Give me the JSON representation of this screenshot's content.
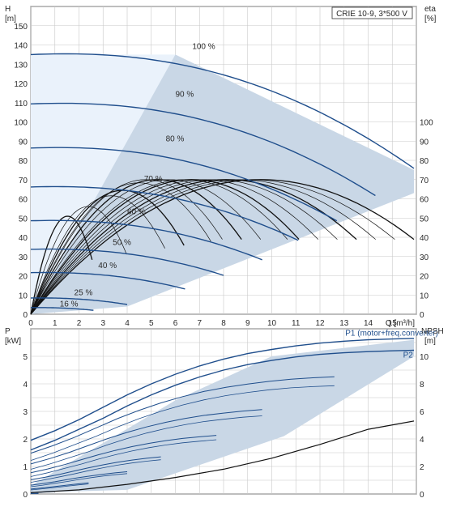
{
  "page": {
    "title": "CRIE 10-9, 3*500 V"
  },
  "colors": {
    "background": "#ffffff",
    "grid": "#c8c8c8",
    "axis": "#333333",
    "curve_blue": "#1f4e8c",
    "curve_black": "#111111",
    "envelope_fill": "#c9d7e6",
    "envelope_light": "#eaf2fb",
    "text": "#2a2a2a",
    "text_blue": "#1f4e8c"
  },
  "chart_data": [
    {
      "id": "qh",
      "type": "line",
      "title": "CRIE 10-9, 3*500 V",
      "xlabel": "Q [m³/h]",
      "ylabel_left": [
        "H",
        "[m]"
      ],
      "ylabel_right": [
        "eta",
        "[%]"
      ],
      "xlim": [
        0,
        16
      ],
      "ylim": [
        0,
        160
      ],
      "y2lim": [
        0,
        160
      ],
      "x_ticks": [
        "0",
        "1",
        "2",
        "3",
        "4",
        "5",
        "6",
        "7",
        "8",
        "9",
        "10",
        "11",
        "12",
        "13",
        "14",
        "15"
      ],
      "y_ticks": [
        "0",
        "10",
        "20",
        "30",
        "40",
        "50",
        "60",
        "70",
        "80",
        "90",
        "100",
        "110",
        "120",
        "130",
        "140",
        "150"
      ],
      "y2_ticks": [
        "0",
        "10",
        "20",
        "30",
        "40",
        "50",
        "60",
        "70",
        "80",
        "90",
        "100"
      ],
      "grid": true,
      "envelope_light": [
        [
          0,
          135
        ],
        [
          6,
          135
        ],
        [
          2,
          4
        ],
        [
          0,
          0
        ]
      ],
      "envelope_main": [
        [
          0,
          0
        ],
        [
          6,
          135
        ],
        [
          15.9,
          75
        ],
        [
          15.9,
          63
        ],
        [
          4,
          4
        ],
        [
          0,
          0
        ]
      ],
      "series": [
        {
          "name": "100 %",
          "speed": 1.0,
          "label_x": 6.7,
          "label_y": 138,
          "end_x": 15.9,
          "end_y": 75
        },
        {
          "name": "90 %",
          "speed": 0.9,
          "label_x": 6.0,
          "label_y": 113,
          "end_x": 14.3,
          "end_y": 61
        },
        {
          "name": "80 %",
          "speed": 0.8,
          "label_x": 5.6,
          "label_y": 90,
          "end_x": 12.7,
          "end_y": 48
        },
        {
          "name": "70 %",
          "speed": 0.7,
          "label_x": 4.7,
          "label_y": 69,
          "end_x": 11.1,
          "end_y": 38
        },
        {
          "name": "60 %",
          "speed": 0.6,
          "label_x": 4.0,
          "label_y": 52,
          "end_x": 9.6,
          "end_y": 28
        },
        {
          "name": "50 %",
          "speed": 0.5,
          "label_x": 3.4,
          "label_y": 36,
          "end_x": 8.0,
          "end_y": 20
        },
        {
          "name": "40 %",
          "speed": 0.4,
          "label_x": 2.8,
          "label_y": 24,
          "end_x": 6.4,
          "end_y": 13
        },
        {
          "name": "25 %",
          "speed": 0.25,
          "label_x": 1.8,
          "label_y": 10,
          "end_x": 4.0,
          "end_y": 5
        },
        {
          "name": "16 %",
          "speed": 0.16,
          "label_x": 1.2,
          "label_y": 4,
          "end_x": 2.6,
          "end_y": 2
        }
      ],
      "eff_family": {
        "speeds": [
          0.16,
          0.25,
          0.35,
          0.4,
          0.47,
          0.5,
          0.55,
          0.6,
          0.67,
          0.7,
          0.75,
          0.8,
          0.85,
          0.9,
          0.95,
          1.0
        ],
        "peak": 70
      }
    },
    {
      "id": "qp",
      "type": "line",
      "ylabel_left": [
        "P",
        "[kW]"
      ],
      "ylabel_right": [
        "NPSH",
        "[m]"
      ],
      "xlim": [
        0,
        16
      ],
      "ylim": [
        0,
        6
      ],
      "y2lim": [
        0,
        12
      ],
      "y_ticks": [
        "0",
        "1",
        "2",
        "3",
        "4",
        "5"
      ],
      "y2_ticks": [
        "0",
        "2",
        "4",
        "6",
        "8",
        "10"
      ],
      "grid": true,
      "envelope": [
        [
          0,
          0.3
        ],
        [
          6,
          3.4
        ],
        [
          10,
          5.0
        ],
        [
          15.9,
          5.6
        ],
        [
          15.9,
          5.0
        ],
        [
          10.5,
          2.1
        ],
        [
          4,
          0.15
        ],
        [
          0,
          0.05
        ]
      ],
      "labels": [
        {
          "text": "P1 (motor+freq.converter)",
          "x": 13.05,
          "y": 5.75
        },
        {
          "text": "P2",
          "x": 15.45,
          "y": 4.95
        }
      ],
      "p1_max": [
        [
          0,
          1.95
        ],
        [
          1,
          2.3
        ],
        [
          2,
          2.7
        ],
        [
          3,
          3.15
        ],
        [
          4,
          3.6
        ],
        [
          5,
          4.0
        ],
        [
          6,
          4.35
        ],
        [
          7,
          4.65
        ],
        [
          8,
          4.9
        ],
        [
          9,
          5.1
        ],
        [
          10,
          5.25
        ],
        [
          11,
          5.38
        ],
        [
          12,
          5.48
        ],
        [
          13,
          5.55
        ],
        [
          14,
          5.6
        ],
        [
          15,
          5.63
        ],
        [
          15.9,
          5.65
        ]
      ],
      "p2_max": [
        [
          0,
          1.6
        ],
        [
          1,
          1.95
        ],
        [
          2,
          2.35
        ],
        [
          3,
          2.75
        ],
        [
          4,
          3.2
        ],
        [
          5,
          3.6
        ],
        [
          6,
          3.95
        ],
        [
          7,
          4.25
        ],
        [
          8,
          4.5
        ],
        [
          9,
          4.7
        ],
        [
          10,
          4.85
        ],
        [
          11,
          4.98
        ],
        [
          12,
          5.07
        ],
        [
          13,
          5.13
        ],
        [
          14,
          5.17
        ],
        [
          15,
          5.2
        ],
        [
          15.9,
          5.22
        ]
      ],
      "npsh": [
        [
          0,
          0.1
        ],
        [
          2,
          0.3
        ],
        [
          4,
          0.7
        ],
        [
          6,
          1.2
        ],
        [
          8,
          1.8
        ],
        [
          10,
          2.6
        ],
        [
          12,
          3.6
        ],
        [
          14,
          4.7
        ],
        [
          15.9,
          5.3
        ]
      ]
    }
  ]
}
